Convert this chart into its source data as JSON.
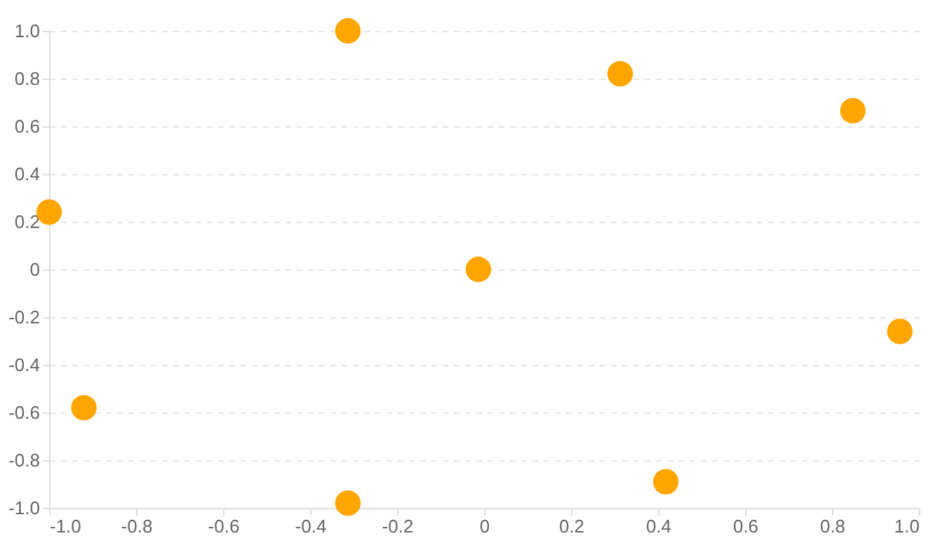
{
  "chart_data": {
    "type": "scatter",
    "x": [
      -1.0,
      -0.313,
      0.313,
      0.848,
      -0.013,
      0.956,
      -0.92,
      -0.313,
      0.418
    ],
    "series": [
      {
        "color": "#ffa500",
        "values": [
          0.24,
          1.0,
          0.82,
          0.665,
          0,
          -0.26,
          -0.58,
          -0.98,
          -0.89
        ]
      }
    ],
    "xlim": [
      -1.0,
      1.0
    ],
    "xticks": [
      {
        "value": -1,
        "label": "-1.0"
      },
      -0.8,
      -0.6,
      -0.4,
      -0.2,
      0,
      0.2,
      0.4,
      0.6,
      0.8,
      {
        "value": 1,
        "label": "1.0"
      }
    ],
    "ylim": [
      -1.0,
      1.0
    ],
    "yticks": [
      {
        "value": -1,
        "label": "-1.0"
      },
      -0.8,
      -0.6,
      -0.4,
      -0.2,
      0,
      0.2,
      0.4,
      0.6,
      0.8,
      {
        "value": 1,
        "label": "1.0"
      }
    ],
    "grid": "y",
    "marker": "circle"
  }
}
